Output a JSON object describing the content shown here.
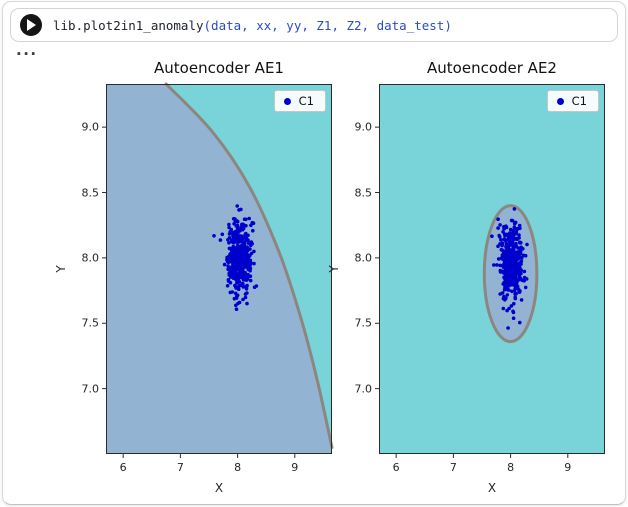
{
  "cell": {
    "code": {
      "function": "lib.plot2in1_anomaly",
      "arguments": "(data, xx, yy, Z1, Z2, data_test)"
    },
    "output_menu": "..."
  },
  "colors": {
    "anomaly_region": "#79d4d9",
    "normal_region": "#92b3d1",
    "boundary": "#8d8076",
    "scatter": "#0000cd",
    "axis": "#2b2b2b"
  },
  "chart_data": [
    {
      "type": "scatter",
      "title": "Autoencoder AE1",
      "xlabel": "X",
      "ylabel": "Y",
      "xlim": [
        5.7,
        9.65
      ],
      "ylim": [
        6.5,
        9.33
      ],
      "xticks": [
        6,
        7,
        8,
        9
      ],
      "xtick_labels": [
        "6",
        "7",
        "8",
        "9"
      ],
      "yticks": [
        9.0,
        8.5,
        8.0,
        7.5,
        7.0
      ],
      "ytick_labels": [
        "9.0",
        "8.5",
        "8.0",
        "7.5",
        "7.0"
      ],
      "grid": false,
      "legend": {
        "label": "C1",
        "position": "upper right"
      },
      "background_color": "#79d4d9",
      "regions": [
        {
          "type": "curve_fill",
          "fill": "#92b3d1",
          "stroke": "#8d8076",
          "stroke_width": 3,
          "curve": [
            [
              6.75,
              9.33
            ],
            [
              7.55,
              8.97
            ],
            [
              8.2,
              8.55
            ],
            [
              8.72,
              8.05
            ],
            [
              9.1,
              7.55
            ],
            [
              9.4,
              7.05
            ],
            [
              9.65,
              6.55
            ]
          ],
          "close": [
            [
              9.65,
              6.5
            ],
            [
              5.7,
              6.5
            ],
            [
              5.7,
              9.33
            ]
          ]
        }
      ],
      "cluster": {
        "name": "C1",
        "n": 450,
        "center": [
          8.02,
          8.0
        ],
        "std": [
          0.11,
          0.14
        ],
        "color": "#0000cd",
        "seed": 7
      }
    },
    {
      "type": "scatter",
      "title": "Autoencoder AE2",
      "xlabel": "X",
      "ylabel": "Y",
      "xlim": [
        5.7,
        9.65
      ],
      "ylim": [
        6.5,
        9.33
      ],
      "xticks": [
        6,
        7,
        8,
        9
      ],
      "xtick_labels": [
        "6",
        "7",
        "8",
        "9"
      ],
      "yticks": [
        9.0,
        8.5,
        8.0,
        7.5,
        7.0
      ],
      "ytick_labels": [
        "9.0",
        "8.5",
        "8.0",
        "7.5",
        "7.0"
      ],
      "grid": false,
      "legend": {
        "label": "C1",
        "position": "upper right"
      },
      "background_color": "#79d4d9",
      "regions": [
        {
          "type": "ellipse",
          "fill": "#92b3d1",
          "stroke": "#8d8076",
          "stroke_width": 3,
          "cx": 8.0,
          "cy": 7.88,
          "rx": 0.46,
          "ry": 0.52
        }
      ],
      "cluster": {
        "name": "C1",
        "n": 450,
        "center": [
          8.01,
          7.96
        ],
        "std": [
          0.1,
          0.14
        ],
        "color": "#0000cd",
        "seed": 11
      }
    }
  ]
}
